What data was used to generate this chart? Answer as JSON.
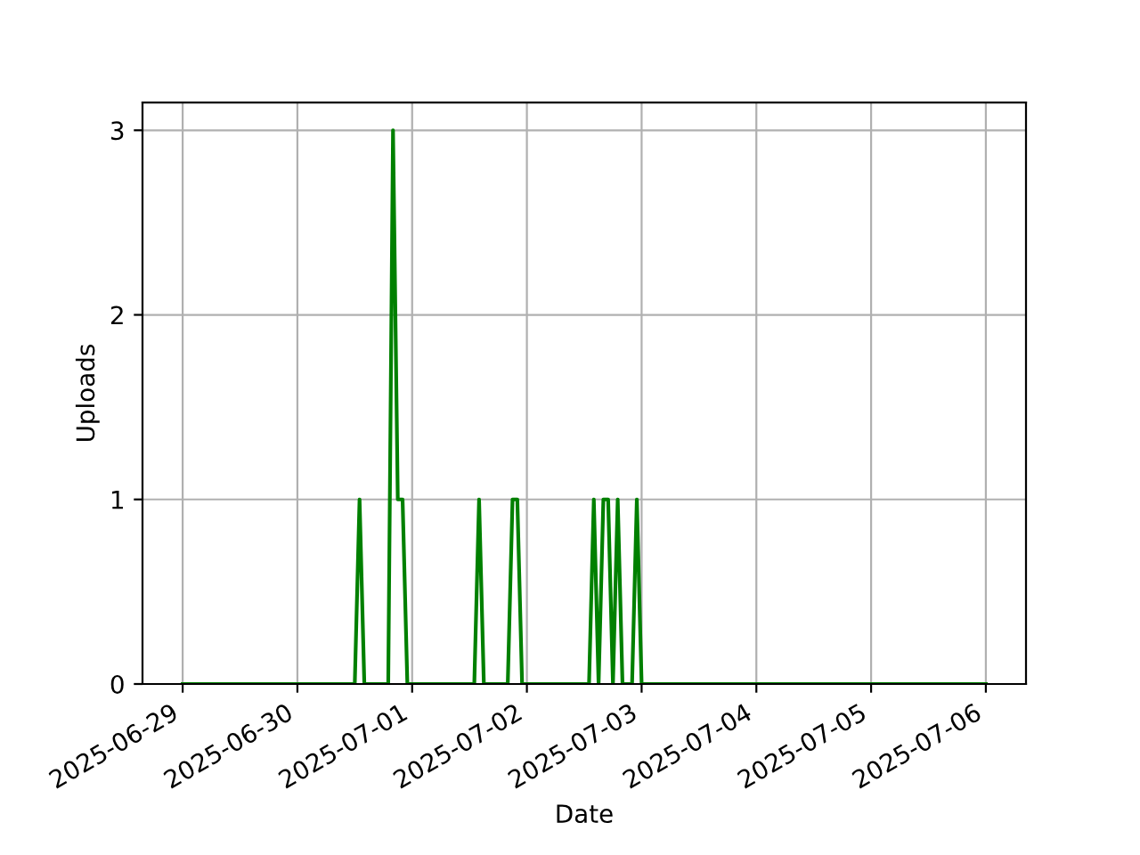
{
  "chart_data": {
    "type": "line",
    "xlabel": "Date",
    "ylabel": "Uploads",
    "x": [
      "2025-06-29T00:00",
      "2025-06-30T12:00",
      "2025-06-30T13:00",
      "2025-06-30T14:00",
      "2025-06-30T19:00",
      "2025-06-30T20:00",
      "2025-06-30T21:00",
      "2025-06-30T22:00",
      "2025-06-30T23:00",
      "2025-07-01T13:00",
      "2025-07-01T14:00",
      "2025-07-01T15:00",
      "2025-07-01T20:00",
      "2025-07-01T21:00",
      "2025-07-01T22:00",
      "2025-07-01T23:00",
      "2025-07-02T13:00",
      "2025-07-02T14:00",
      "2025-07-02T15:00",
      "2025-07-02T16:00",
      "2025-07-02T17:00",
      "2025-07-02T18:00",
      "2025-07-02T19:00",
      "2025-07-02T20:00",
      "2025-07-02T22:00",
      "2025-07-02T23:00",
      "2025-07-03T00:00",
      "2025-07-06T00:00"
    ],
    "series": [
      {
        "color": "#008000",
        "values": [
          0,
          0,
          1,
          0,
          0,
          3,
          1,
          1,
          0,
          0,
          1,
          0,
          0,
          1,
          1,
          0,
          0,
          1,
          0,
          1,
          1,
          0,
          1,
          0,
          0,
          1,
          0,
          0
        ]
      }
    ],
    "xlim": [
      "2025-06-28T15:36",
      "2025-07-06T08:24"
    ],
    "xticks": [
      "2025-06-29",
      "2025-06-30",
      "2025-07-01",
      "2025-07-02",
      "2025-07-03",
      "2025-07-04",
      "2025-07-05",
      "2025-07-06"
    ],
    "ylim": [
      0,
      3.15
    ],
    "yticks": [
      0,
      1,
      2,
      3
    ],
    "grid": true,
    "marker": "none",
    "line_style": "solid"
  }
}
